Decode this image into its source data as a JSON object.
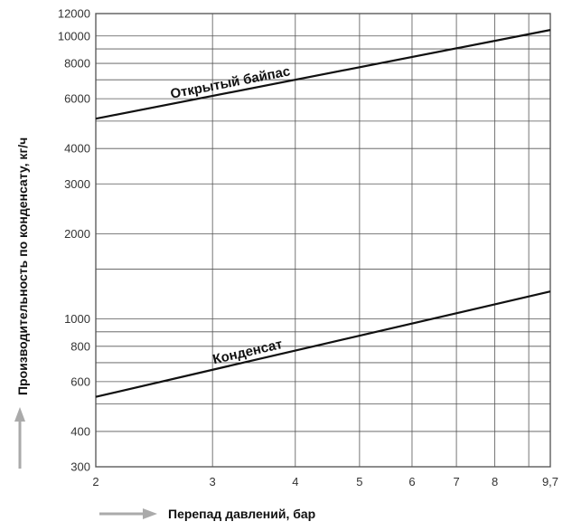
{
  "chart_data": {
    "type": "line",
    "x_scale": "log",
    "y_scale": "log",
    "xlabel": "Перепад давлений, бар",
    "ylabel": "Производительность по конденсату, кг/ч",
    "xlim": [
      2,
      9.7
    ],
    "ylim": [
      300,
      12000
    ],
    "grid": true,
    "x_ticks": [
      2,
      3,
      4,
      5,
      6,
      7,
      8,
      9.7
    ],
    "x_tick_labels": [
      "2",
      "3",
      "4",
      "5",
      "6",
      "7",
      "8",
      "9,7"
    ],
    "y_ticks": [
      300,
      400,
      600,
      800,
      1000,
      2000,
      3000,
      4000,
      6000,
      8000,
      10000,
      12000
    ],
    "y_tick_labels": [
      "300",
      "400",
      "600",
      "800",
      "1000",
      "2000",
      "3000",
      "4000",
      "6000",
      "8000",
      "10000",
      "12000"
    ],
    "y_minor_grid": [
      500,
      700,
      900,
      1500,
      5000,
      7000,
      9000
    ],
    "x_minor_grid": [
      9
    ],
    "series": [
      {
        "name": "Открытый байпас",
        "x": [
          2,
          9.7
        ],
        "y": [
          5100,
          10500
        ]
      },
      {
        "name": "Конденсат",
        "x": [
          2,
          9.7
        ],
        "y": [
          530,
          1250
        ]
      }
    ]
  },
  "colors": {
    "line": "#111111",
    "grid": "#555555",
    "arrow": "#aaaaaa"
  }
}
